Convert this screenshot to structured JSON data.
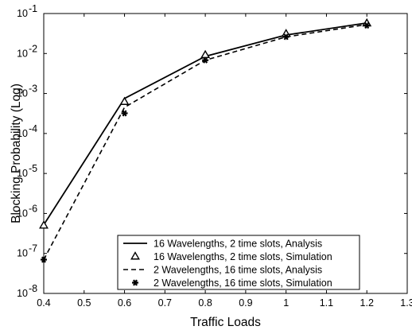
{
  "chart_data": {
    "type": "line",
    "title": "",
    "xlabel": "Traffic Loads",
    "ylabel": "Blocking Probability (Log)",
    "xlim": [
      0.4,
      1.3
    ],
    "ylim": [
      1e-08,
      0.1
    ],
    "yscale": "log",
    "grid": false,
    "legend_position": "bottom-right",
    "x_ticks": [
      "0.4",
      "0.5",
      "0.6",
      "0.7",
      "0.8",
      "0.9",
      "1",
      "1.1",
      "1.2",
      "1.3"
    ],
    "y_ticks": [
      {
        "base": "10",
        "exp": "-8"
      },
      {
        "base": "10",
        "exp": "-7"
      },
      {
        "base": "10",
        "exp": "-6"
      },
      {
        "base": "10",
        "exp": "-5"
      },
      {
        "base": "10",
        "exp": "-4"
      },
      {
        "base": "10",
        "exp": "-3"
      },
      {
        "base": "10",
        "exp": "-2"
      },
      {
        "base": "10",
        "exp": "-1"
      }
    ],
    "series": [
      {
        "name": "16 Wavelengths, 2 time slots, Analysis",
        "style": "solid-line",
        "x": [
          0.4,
          0.6,
          0.8,
          1.0,
          1.2
        ],
        "y": [
          5.2e-07,
          0.00075,
          0.0085,
          0.029,
          0.058
        ]
      },
      {
        "name": "16 Wavelengths, 2 time slots, Simulation",
        "style": "triangle-marker",
        "x": [
          0.4,
          0.6,
          0.8,
          1.0,
          1.2
        ],
        "y": [
          5e-07,
          0.00062,
          0.0092,
          0.031,
          0.057
        ]
      },
      {
        "name": "2 Wavelengths, 16 time slots, Analysis",
        "style": "dashed-line",
        "x": [
          0.4,
          0.6,
          0.8,
          1.0,
          1.2
        ],
        "y": [
          7e-08,
          0.00045,
          0.0068,
          0.026,
          0.053
        ]
      },
      {
        "name": "2 Wavelengths, 16 time slots, Simulation",
        "style": "star-marker",
        "x": [
          0.4,
          0.6,
          0.8,
          1.0,
          1.2
        ],
        "y": [
          7e-08,
          0.00032,
          0.0068,
          0.026,
          0.05
        ]
      }
    ]
  }
}
